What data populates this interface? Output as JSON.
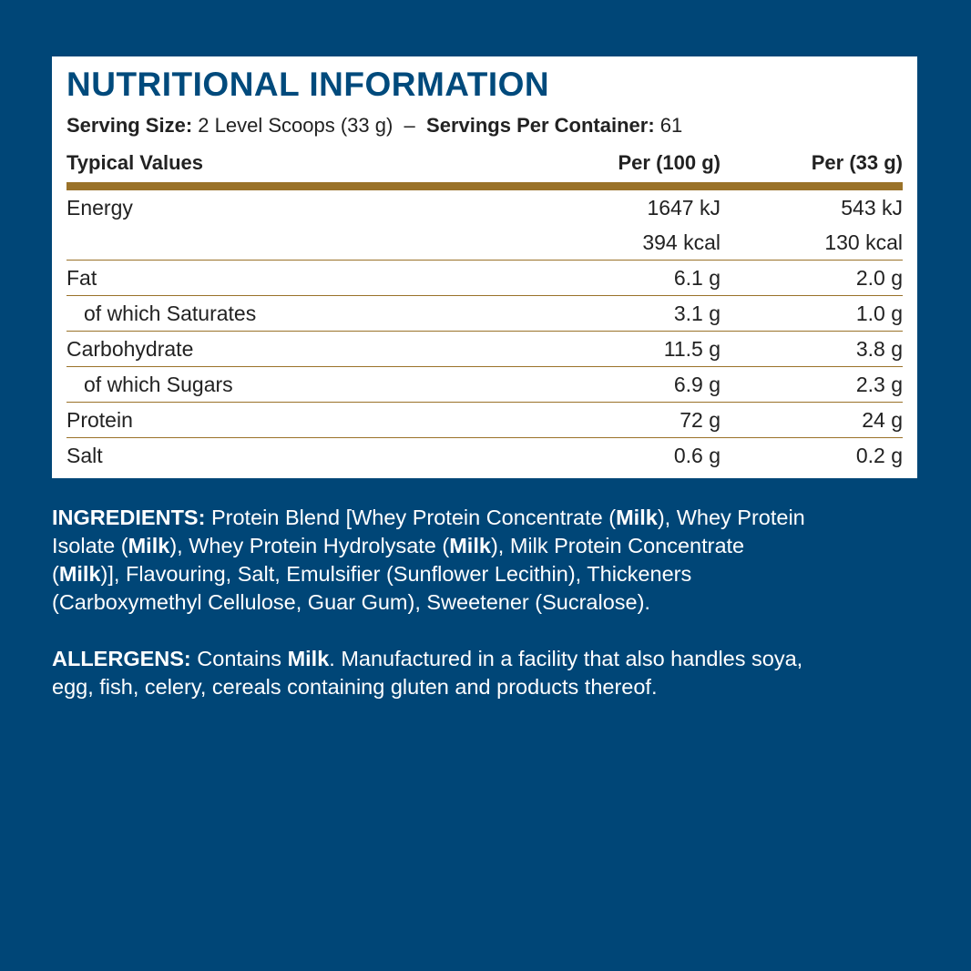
{
  "panel": {
    "title": "NUTRITIONAL INFORMATION",
    "serving_size_label": "Serving Size:",
    "serving_size_value": "2 Level Scoops (33 g)",
    "separator": "–",
    "servings_label": "Servings Per Container:",
    "servings_value": "61",
    "headers": [
      "Typical Values",
      "Per (100 g)",
      "Per (33 g)"
    ],
    "rows": [
      {
        "label": "Energy",
        "per100": "1647 kJ",
        "per33": "543 kJ",
        "indent": false
      },
      {
        "label": "",
        "per100": "394 kcal",
        "per33": "130 kcal",
        "indent": false
      },
      {
        "label": "Fat",
        "per100": "6.1 g",
        "per33": "2.0 g",
        "indent": false
      },
      {
        "label": "of which Saturates",
        "per100": "3.1 g",
        "per33": "1.0 g",
        "indent": true
      },
      {
        "label": "Carbohydrate",
        "per100": "11.5 g",
        "per33": "3.8 g",
        "indent": false
      },
      {
        "label": "of which Sugars",
        "per100": "6.9 g",
        "per33": "2.3 g",
        "indent": true
      },
      {
        "label": "Protein",
        "per100": "72 g",
        "per33": "24 g",
        "indent": false
      },
      {
        "label": "Salt",
        "per100": "0.6 g",
        "per33": "0.2 g",
        "indent": false
      }
    ]
  },
  "ingredients": [
    [
      {
        "t": "INGREDIENTS:",
        "b": true
      },
      {
        "t": " Protein Blend [Whey Protein Concentrate (",
        "b": false
      },
      {
        "t": "Milk",
        "b": true
      },
      {
        "t": "), Whey Protein",
        "b": false
      }
    ],
    [
      {
        "t": "Isolate (",
        "b": false
      },
      {
        "t": "Milk",
        "b": true
      },
      {
        "t": "), Whey Protein Hydrolysate (",
        "b": false
      },
      {
        "t": "Milk",
        "b": true
      },
      {
        "t": "), Milk Protein Concentrate",
        "b": false
      }
    ],
    [
      {
        "t": "(",
        "b": false
      },
      {
        "t": "Milk",
        "b": true
      },
      {
        "t": ")], Flavouring, Salt, Emulsifier (Sunflower Lecithin), Thickeners",
        "b": false
      }
    ],
    [
      {
        "t": "(Carboxymethyl Cellulose, Guar Gum), Sweetener (Sucralose).",
        "b": false
      }
    ]
  ],
  "allergens": [
    [
      {
        "t": "ALLERGENS:",
        "b": true
      },
      {
        "t": " Contains ",
        "b": false
      },
      {
        "t": "Milk",
        "b": true
      },
      {
        "t": ". Manufactured in a facility that also handles soya,",
        "b": false
      }
    ],
    [
      {
        "t": "egg, fish, celery, cereals containing gluten and products thereof.",
        "b": false
      }
    ]
  ],
  "colors": {
    "background": "#004677",
    "title": "#004a7c",
    "rule": "#9a7229"
  }
}
